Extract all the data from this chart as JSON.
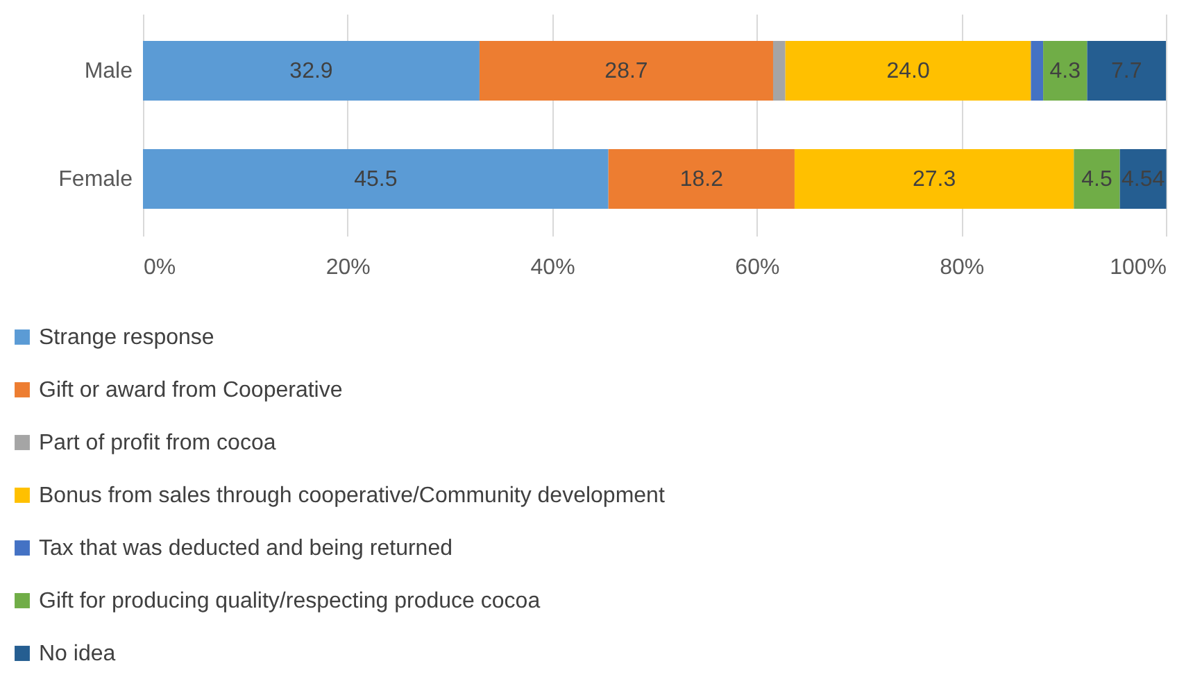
{
  "chart_data": {
    "type": "bar",
    "orientation": "horizontal",
    "stacked": true,
    "categories": [
      "Male",
      "Female"
    ],
    "series": [
      {
        "name": "Strange response",
        "color": "#5b9bd5",
        "values": [
          32.9,
          45.5
        ],
        "value_labels": [
          "32.9",
          "45.5"
        ]
      },
      {
        "name": "Gift or award from Cooperative",
        "color": "#ed7d31",
        "values": [
          28.7,
          18.2
        ],
        "value_labels": [
          "28.7",
          "18.2"
        ]
      },
      {
        "name": "Part of profit from cocoa",
        "color": "#a5a5a5",
        "values": [
          1.2,
          null
        ],
        "value_labels": [
          null,
          null
        ]
      },
      {
        "name": "Bonus from sales through cooperative/Community development",
        "color": "#ffc000",
        "values": [
          24.0,
          27.3
        ],
        "value_labels": [
          "24.0",
          "27.3"
        ]
      },
      {
        "name": "Tax that was deducted and being returned",
        "color": "#4472c4",
        "values": [
          1.2,
          null
        ],
        "value_labels": [
          null,
          null
        ]
      },
      {
        "name": "Gift for producing quality/respecting produce cocoa",
        "color": "#70ad47",
        "values": [
          4.3,
          4.5
        ],
        "value_labels": [
          "4.3",
          "4.5"
        ]
      },
      {
        "name": "No idea",
        "color": "#255e91",
        "values": [
          7.7,
          4.54
        ],
        "value_labels": [
          "7.7",
          "4.54"
        ]
      }
    ],
    "xlim": [
      0,
      100
    ],
    "xticks": [
      {
        "value": 0,
        "label": "0%"
      },
      {
        "value": 20,
        "label": "20%"
      },
      {
        "value": 40,
        "label": "40%"
      },
      {
        "value": 60,
        "label": "60%"
      },
      {
        "value": 80,
        "label": "80%"
      },
      {
        "value": 100,
        "label": "100%"
      }
    ],
    "grid": "x",
    "legend": "bottom"
  }
}
